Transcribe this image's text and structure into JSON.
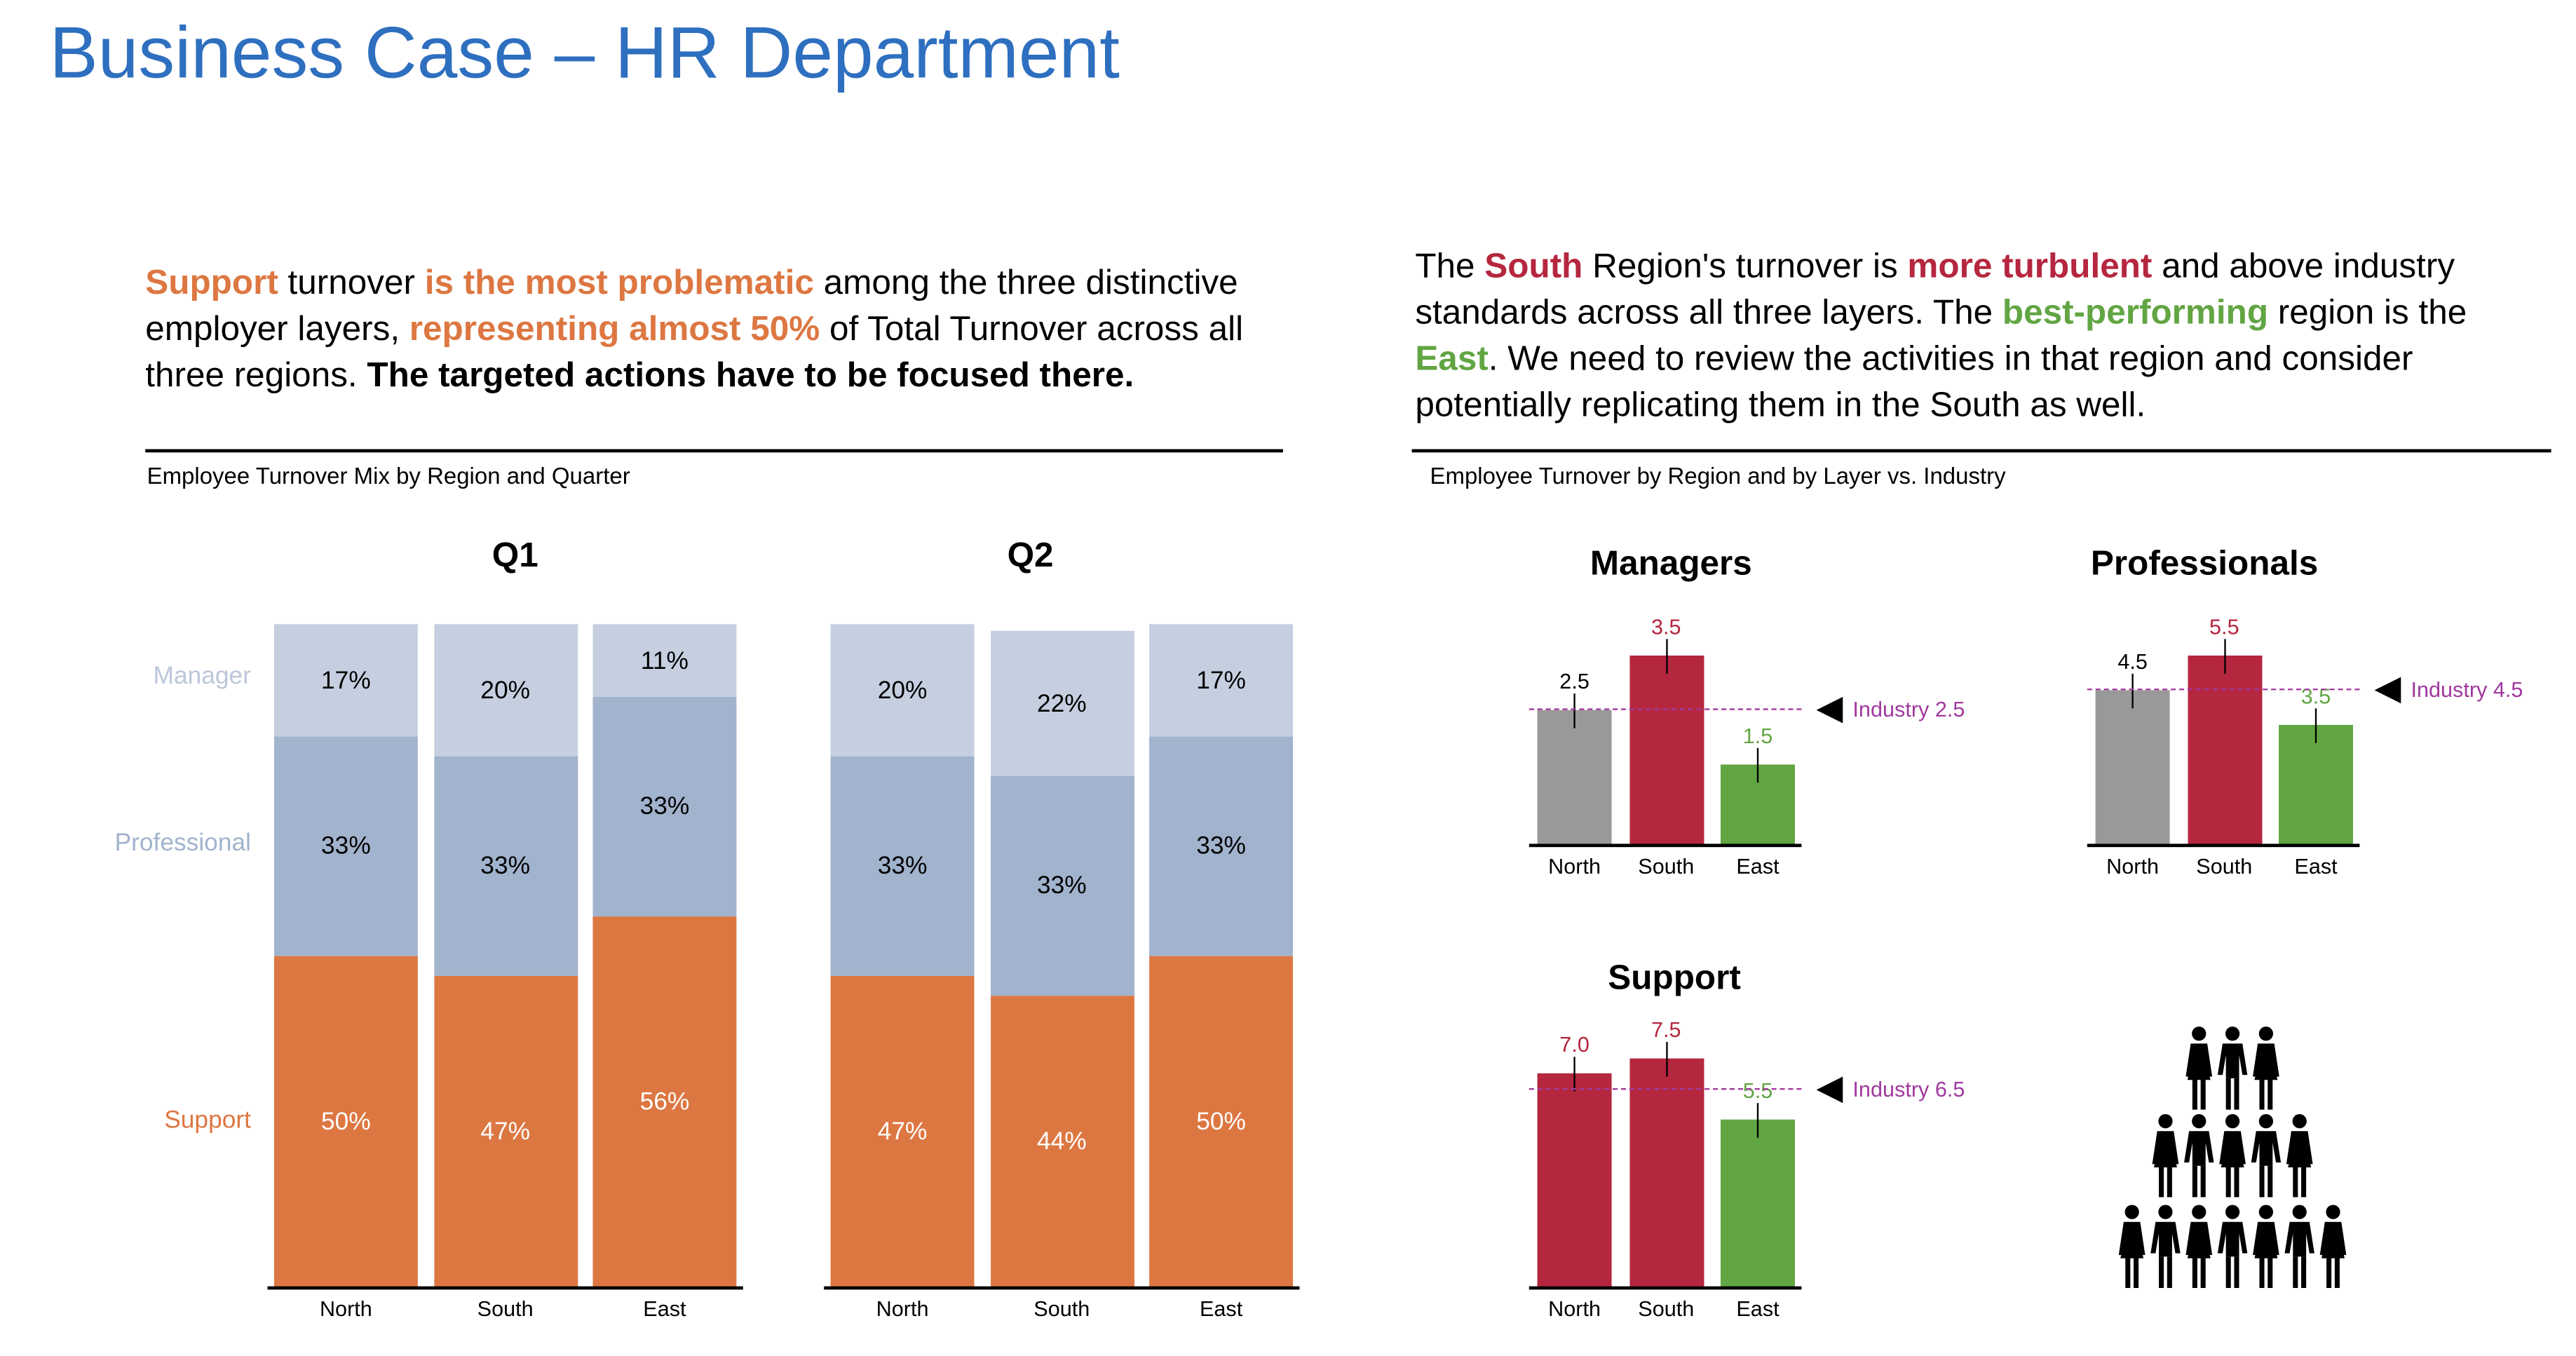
{
  "title": "Business Case – HR Department",
  "left_text": [
    {
      "t": "Support",
      "c": "orange"
    },
    {
      "t": " turnover ",
      "c": ""
    },
    {
      "t": "is the most problematic",
      "c": "orange"
    },
    {
      "t": " among the three distinctive employer layers, ",
      "c": ""
    },
    {
      "t": "representing almost 50%",
      "c": "orange"
    },
    {
      "t": " of Total Turnover across all three regions. ",
      "c": ""
    },
    {
      "t": "The targeted actions have to be focused there.",
      "c": "bold"
    }
  ],
  "right_text": [
    {
      "t": "The ",
      "c": ""
    },
    {
      "t": "South",
      "c": "red"
    },
    {
      "t": " Region's turnover is ",
      "c": ""
    },
    {
      "t": "more turbulent",
      "c": "red"
    },
    {
      "t": " and above industry standards across all three layers. The ",
      "c": ""
    },
    {
      "t": "best-performing",
      "c": "green"
    },
    {
      "t": " region is the ",
      "c": ""
    },
    {
      "t": "East",
      "c": "green"
    },
    {
      "t": ". We need to review the activities in that region and consider potentially replicating them in the South as well.",
      "c": ""
    }
  ],
  "left_caption": "Employee Turnover Mix by Region and Quarter",
  "right_caption": "Employee Turnover by Region and by Layer vs. Industry",
  "colors": {
    "manager": "#c5cfe0",
    "professional": "#a1b3cd",
    "support": "#dd7742",
    "north": "#999999",
    "south": "#b5263f",
    "east": "#62a543",
    "industry": "#a0399e"
  },
  "chart_data": [
    {
      "type": "bar",
      "stacked": true,
      "percent": true,
      "title": "Q1",
      "categories": [
        "North",
        "South",
        "East"
      ],
      "legend": [
        "Manager",
        "Professional",
        "Support"
      ],
      "series": [
        {
          "name": "Support",
          "values": [
            50,
            47,
            56
          ],
          "labels": [
            "50%",
            "47%",
            "56%"
          ]
        },
        {
          "name": "Professional",
          "values": [
            33,
            33,
            33
          ],
          "labels": [
            "33%",
            "33%",
            "33%"
          ]
        },
        {
          "name": "Manager",
          "values": [
            17,
            20,
            11
          ],
          "labels": [
            "17%",
            "20%",
            "11%"
          ]
        }
      ]
    },
    {
      "type": "bar",
      "stacked": true,
      "percent": true,
      "title": "Q2",
      "categories": [
        "North",
        "South",
        "East"
      ],
      "series": [
        {
          "name": "Support",
          "values": [
            47,
            44,
            50
          ],
          "labels": [
            "47%",
            "44%",
            "50%"
          ]
        },
        {
          "name": "Professional",
          "values": [
            33,
            33,
            33
          ],
          "labels": [
            "33%",
            "33%",
            "33%"
          ]
        },
        {
          "name": "Manager",
          "values": [
            20,
            22,
            17
          ],
          "labels": [
            "20%",
            "22%",
            "17%"
          ]
        }
      ]
    },
    {
      "type": "bar",
      "title": "Managers",
      "categories": [
        "North",
        "South",
        "East"
      ],
      "values": [
        2.5,
        3.5,
        1.5
      ],
      "labels": [
        "2.5",
        "3.5",
        "1.5"
      ],
      "bar_colors": [
        "north",
        "south",
        "east"
      ],
      "industry": 2.5,
      "industry_label": "Industry 2.5"
    },
    {
      "type": "bar",
      "title": "Professionals",
      "categories": [
        "North",
        "South",
        "East"
      ],
      "values": [
        4.5,
        5.5,
        3.5
      ],
      "labels": [
        "4.5",
        "5.5",
        "3.5"
      ],
      "bar_colors": [
        "north",
        "south",
        "east"
      ],
      "industry": 4.5,
      "industry_label": "Industry 4.5"
    },
    {
      "type": "bar",
      "title": "Support",
      "categories": [
        "North",
        "South",
        "East"
      ],
      "values": [
        7.0,
        7.5,
        5.5
      ],
      "labels": [
        "7.0",
        "7.5",
        "5.5"
      ],
      "bar_colors": [
        "south",
        "south",
        "east"
      ],
      "industry": 6.5,
      "industry_label": "Industry 6.5"
    }
  ],
  "pictogram": {
    "icon": "people-pyramid-icon",
    "rows": [
      3,
      5,
      7
    ]
  }
}
